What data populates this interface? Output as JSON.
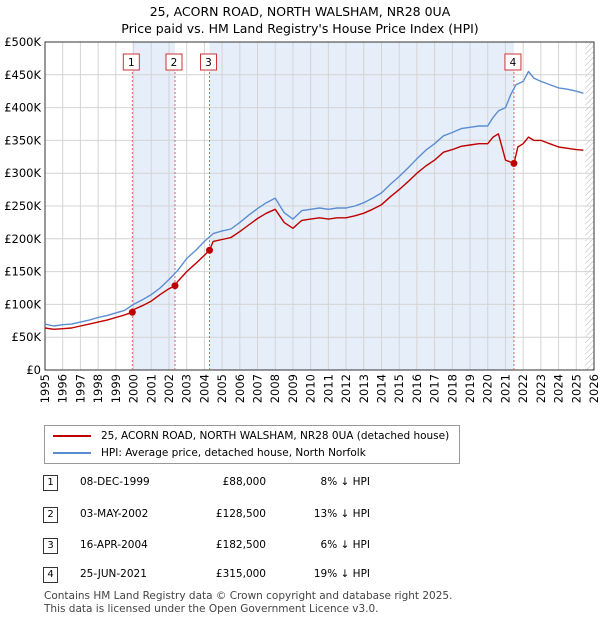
{
  "title_line1": "25, ACORN ROAD, NORTH WALSHAM, NR28 0UA",
  "title_line2": "Price paid vs. HM Land Registry's House Price Index (HPI)",
  "legend": {
    "property_label": "25, ACORN ROAD, NORTH WALSHAM, NR28 0UA (detached house)",
    "hpi_label": "HPI: Average price, detached house, North Norfolk"
  },
  "colors": {
    "property": "#c00000",
    "hpi": "#5b8dd1",
    "shade": "#e6eefa",
    "grid": "#d4d4d4",
    "marker_line": "#e06060",
    "hatch": "#888888"
  },
  "chart_data": {
    "type": "line",
    "title": "Price paid vs. HM Land Registry's House Price Index (HPI)",
    "xlabel": "",
    "ylabel": "",
    "xlim": [
      1995,
      2026
    ],
    "ylim": [
      0,
      500000
    ],
    "x_ticks": [
      "1995",
      "1996",
      "1997",
      "1998",
      "1999",
      "2000",
      "2001",
      "2002",
      "2003",
      "2004",
      "2005",
      "2006",
      "2007",
      "2008",
      "2009",
      "2010",
      "2011",
      "2012",
      "2013",
      "2014",
      "2015",
      "2016",
      "2017",
      "2018",
      "2019",
      "2020",
      "2021",
      "2022",
      "2023",
      "2024",
      "2025",
      "2026"
    ],
    "y_ticks": [
      {
        "value": 0,
        "label": "£0"
      },
      {
        "value": 50000,
        "label": "£50K"
      },
      {
        "value": 100000,
        "label": "£100K"
      },
      {
        "value": 150000,
        "label": "£150K"
      },
      {
        "value": 200000,
        "label": "£200K"
      },
      {
        "value": 250000,
        "label": "£250K"
      },
      {
        "value": 300000,
        "label": "£300K"
      },
      {
        "value": 350000,
        "label": "£350K"
      },
      {
        "value": 400000,
        "label": "£400K"
      },
      {
        "value": 450000,
        "label": "£450K"
      },
      {
        "value": 500000,
        "label": "£500K"
      }
    ],
    "series": [
      {
        "name": "HPI: Average price, detached house, North Norfolk",
        "x": [
          1995,
          1995.5,
          1996,
          1996.5,
          1997,
          1997.5,
          1998,
          1998.5,
          1999,
          1999.5,
          2000,
          2000.5,
          2001,
          2001.5,
          2002,
          2002.5,
          2003,
          2003.5,
          2004,
          2004.5,
          2005,
          2005.5,
          2006,
          2006.5,
          2007,
          2007.5,
          2008,
          2008.5,
          2009,
          2009.5,
          2010,
          2010.5,
          2011,
          2011.5,
          2012,
          2012.5,
          2013,
          2013.5,
          2014,
          2014.5,
          2015,
          2015.5,
          2016,
          2016.5,
          2017,
          2017.5,
          2018,
          2018.5,
          2019,
          2019.5,
          2020,
          2020.3,
          2020.6,
          2021,
          2021.3,
          2021.6,
          2022,
          2022.3,
          2022.6,
          2023,
          2023.5,
          2024,
          2024.5,
          2025,
          2025.4
        ],
        "values": [
          70000,
          67000,
          69000,
          70000,
          73000,
          76000,
          80000,
          83000,
          87000,
          91000,
          100000,
          107000,
          115000,
          125000,
          138000,
          152000,
          170000,
          182000,
          196000,
          208000,
          212000,
          215000,
          225000,
          236000,
          246000,
          255000,
          262000,
          240000,
          230000,
          243000,
          245000,
          247000,
          245000,
          247000,
          247000,
          250000,
          255000,
          262000,
          270000,
          283000,
          295000,
          308000,
          322000,
          335000,
          345000,
          357000,
          362000,
          368000,
          370000,
          372000,
          372000,
          385000,
          395000,
          400000,
          420000,
          435000,
          440000,
          455000,
          445000,
          440000,
          435000,
          430000,
          428000,
          425000,
          422000
        ]
      },
      {
        "name": "25, ACORN ROAD, NORTH WALSHAM, NR28 0UA (detached house)",
        "x": [
          1995,
          1995.5,
          1996,
          1996.5,
          1997,
          1997.5,
          1998,
          1998.5,
          1999,
          1999.5,
          1999.93,
          2000,
          2000.5,
          2001,
          2001.5,
          2002,
          2002.34,
          2002.5,
          2003,
          2003.5,
          2004,
          2004.29,
          2004.5,
          2005,
          2005.5,
          2006,
          2006.5,
          2007,
          2007.5,
          2008,
          2008.5,
          2009,
          2009.5,
          2010,
          2010.5,
          2011,
          2011.5,
          2012,
          2012.5,
          2013,
          2013.5,
          2014,
          2014.5,
          2015,
          2015.5,
          2016,
          2016.5,
          2017,
          2017.5,
          2018,
          2018.5,
          2019,
          2019.5,
          2020,
          2020.3,
          2020.6,
          2021,
          2021.48,
          2021.7,
          2022,
          2022.3,
          2022.6,
          2023,
          2023.5,
          2024,
          2024.5,
          2025,
          2025.4
        ],
        "values": [
          64000,
          62000,
          63000,
          64000,
          67000,
          70000,
          73000,
          76000,
          80000,
          84000,
          88000,
          92000,
          98000,
          105000,
          115000,
          124000,
          128500,
          135000,
          150000,
          162000,
          175000,
          182500,
          196000,
          199000,
          202000,
          211000,
          221000,
          231000,
          239000,
          245000,
          225000,
          216000,
          228000,
          230000,
          232000,
          230000,
          232000,
          232000,
          235000,
          239000,
          245000,
          252000,
          264000,
          275000,
          287000,
          300000,
          311000,
          320000,
          332000,
          336000,
          341000,
          343000,
          345000,
          345000,
          355000,
          360000,
          320000,
          315000,
          340000,
          345000,
          355000,
          350000,
          350000,
          345000,
          340000,
          338000,
          336000,
          335000
        ]
      }
    ],
    "sales": [
      {
        "num": "1",
        "date": "08-DEC-1999",
        "x": 1999.93,
        "price": 88000,
        "price_label": "£88,000",
        "hpi": "8% ↓ HPI"
      },
      {
        "num": "2",
        "date": "03-MAY-2002",
        "x": 2002.34,
        "price": 128500,
        "price_label": "£128,500",
        "hpi": "13% ↓ HPI"
      },
      {
        "num": "3",
        "date": "16-APR-2004",
        "x": 2004.29,
        "price": 182500,
        "price_label": "£182,500",
        "hpi": "6% ↓ HPI"
      },
      {
        "num": "4",
        "date": "25-JUN-2021",
        "x": 2021.48,
        "price": 315000,
        "price_label": "£315,000",
        "hpi": "19% ↓ HPI"
      }
    ],
    "shaded_periods": [
      [
        1999.93,
        2002.34
      ],
      [
        2004.29,
        2021.48
      ]
    ],
    "hatched_from": 2025.5
  },
  "footer_line1": "Contains HM Land Registry data © Crown copyright and database right 2025.",
  "footer_line2": "This data is licensed under the Open Government Licence v3.0."
}
